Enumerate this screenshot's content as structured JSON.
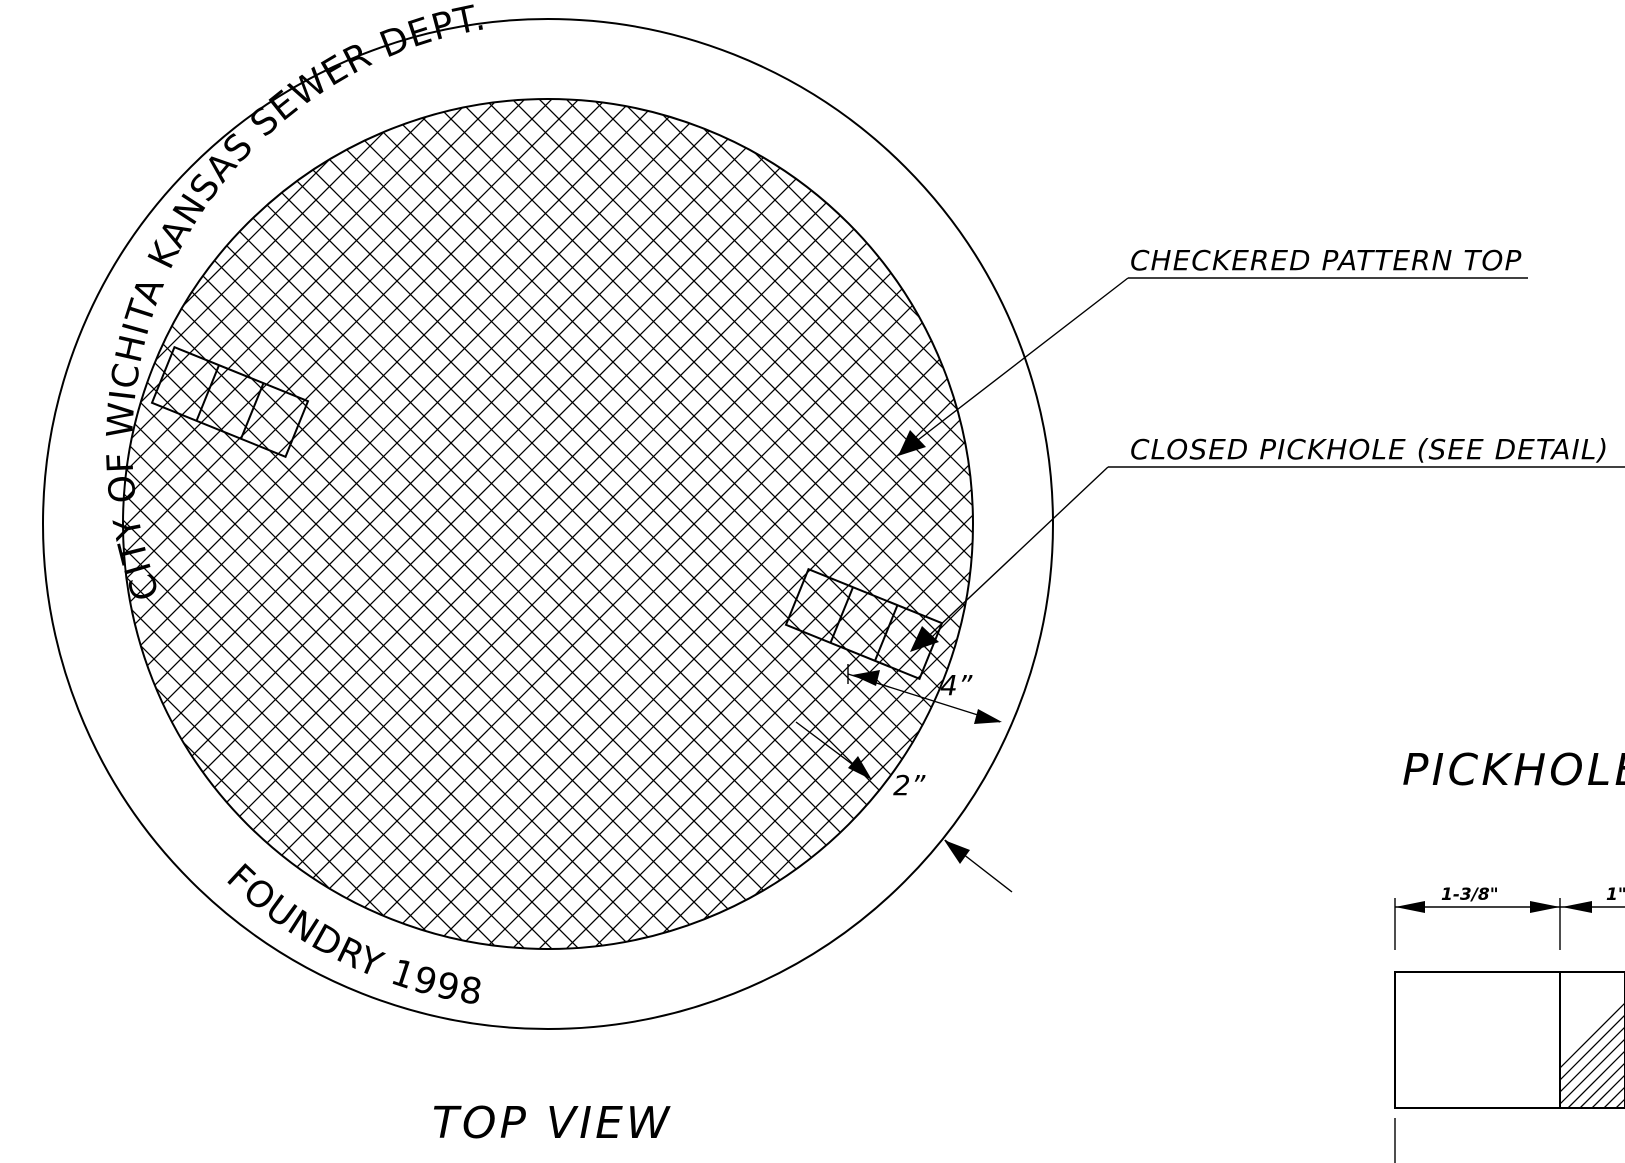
{
  "rim_text": {
    "top": "CITY   OF   WICHITA   KANSAS     SEWER    DEPT.",
    "bottom": "FOUNDRY                1998"
  },
  "callouts": {
    "checkered": "CHECKERED PATTERN TOP",
    "pickhole": "CLOSED PICKHOLE (SEE DETAIL)"
  },
  "dimensions": {
    "four_inch": "4”",
    "two_inch": "2”",
    "detail_width": "1-3/8\"",
    "detail_width_2": "1\""
  },
  "titles": {
    "top_view": "TOP VIEW",
    "pickhole_detail": "PICKHOLE"
  }
}
